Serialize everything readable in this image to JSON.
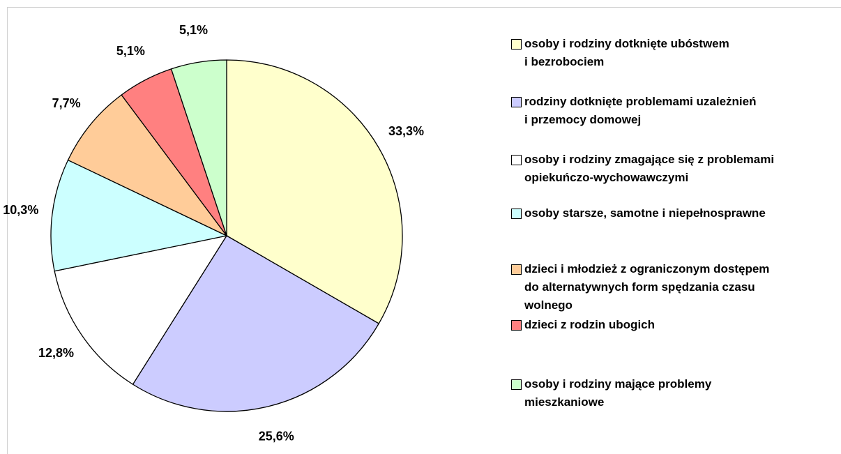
{
  "chart_data": {
    "type": "pie",
    "categories": [
      "osoby i rodziny dotknięte ubóstwem\ni bezrobociem",
      "rodziny dotknięte problemami uzależnień\ni przemocy domowej",
      "osoby i rodziny zmagające się z problemami\nopiekuńczo-wychowawczymi",
      "osoby starsze, samotne i niepełnosprawne",
      "dzieci i młodzież z ograniczonym dostępem\ndo alternatywnych form spędzania czasu\nwolnego",
      "dzieci z rodzin ubogich",
      "osoby i rodziny mające problemy\nmieszkaniowe"
    ],
    "values": [
      33.3,
      25.6,
      12.8,
      10.3,
      7.7,
      5.1,
      5.1
    ],
    "value_labels": [
      "33,3%",
      "25,6%",
      "12,8%",
      "10,3%",
      "7,7%",
      "5,1%",
      "5,1%"
    ],
    "colors": [
      "#ffffcc",
      "#ccccff",
      "#ffffff",
      "#ccffff",
      "#ffcc99",
      "#ff8080",
      "#ccffcc"
    ],
    "legend": "right"
  }
}
